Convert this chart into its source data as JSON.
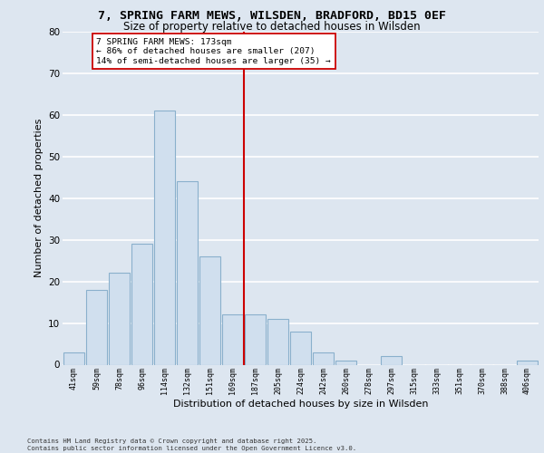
{
  "title_line1": "7, SPRING FARM MEWS, WILSDEN, BRADFORD, BD15 0EF",
  "title_line2": "Size of property relative to detached houses in Wilsden",
  "xlabel": "Distribution of detached houses by size in Wilsden",
  "ylabel": "Number of detached properties",
  "footnote_line1": "Contains HM Land Registry data © Crown copyright and database right 2025.",
  "footnote_line2": "Contains public sector information licensed under the Open Government Licence v3.0.",
  "bar_labels": [
    "41sqm",
    "59sqm",
    "78sqm",
    "96sqm",
    "114sqm",
    "132sqm",
    "151sqm",
    "169sqm",
    "187sqm",
    "205sqm",
    "224sqm",
    "242sqm",
    "260sqm",
    "278sqm",
    "297sqm",
    "315sqm",
    "333sqm",
    "351sqm",
    "370sqm",
    "388sqm",
    "406sqm"
  ],
  "bar_values": [
    3,
    18,
    22,
    29,
    61,
    44,
    26,
    12,
    12,
    11,
    8,
    3,
    1,
    0,
    2,
    0,
    0,
    0,
    0,
    0,
    1
  ],
  "bar_color": "#d0dfee",
  "bar_edgecolor": "#8ab0cc",
  "background_color": "#dde6f0",
  "plot_bg_color": "#dde6f0",
  "grid_color": "#ffffff",
  "vline_color": "#cc0000",
  "annotation_text": "7 SPRING FARM MEWS: 173sqm\n← 86% of detached houses are smaller (207)\n14% of semi-detached houses are larger (35) →",
  "annotation_box_edgecolor": "#cc0000",
  "annotation_box_facecolor": "#ffffff",
  "ylim": [
    0,
    80
  ],
  "yticks": [
    0,
    10,
    20,
    30,
    40,
    50,
    60,
    70,
    80
  ]
}
